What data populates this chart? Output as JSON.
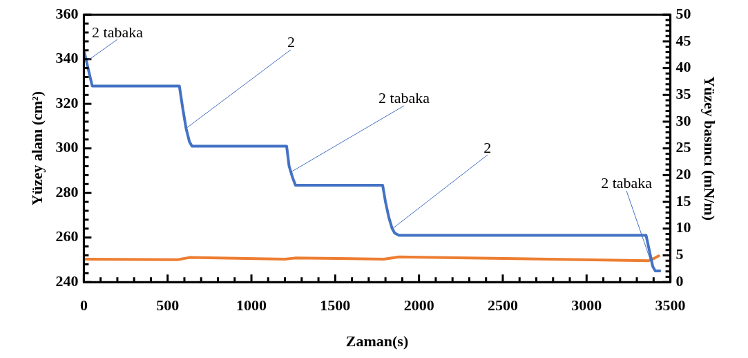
{
  "chart_data": {
    "type": "line",
    "xlabel": "Zaman(s)",
    "ylabel": "Yüzey alanı (cm²)",
    "y2label": "Yüzey basıncı (mN/m)",
    "xlim": [
      0,
      3500
    ],
    "ylim": [
      240,
      360
    ],
    "y2lim": [
      0,
      50
    ],
    "xticks": [
      0,
      {
        "value": 100,
        "label": null
      },
      {
        "value": 200,
        "label": null
      },
      {
        "value": 300,
        "label": null
      },
      {
        "value": 400,
        "label": null
      },
      500,
      {
        "value": 600,
        "label": null
      },
      {
        "value": 700,
        "label": null
      },
      {
        "value": 800,
        "label": null
      },
      {
        "value": 900,
        "label": null
      },
      1000,
      {
        "value": 1100,
        "label": null
      },
      {
        "value": 1200,
        "label": null
      },
      {
        "value": 1300,
        "label": null
      },
      {
        "value": 1400,
        "label": null
      },
      1500,
      {
        "value": 1600,
        "label": null
      },
      {
        "value": 1700,
        "label": null
      },
      {
        "value": 1800,
        "label": null
      },
      {
        "value": 1900,
        "label": null
      },
      2000,
      {
        "value": 2100,
        "label": null
      },
      {
        "value": 2200,
        "label": null
      },
      {
        "value": 2300,
        "label": null
      },
      {
        "value": 2400,
        "label": null
      },
      2500,
      {
        "value": 2600,
        "label": null
      },
      {
        "value": 2700,
        "label": null
      },
      {
        "value": 2800,
        "label": null
      },
      {
        "value": 2900,
        "label": null
      },
      3000,
      {
        "value": 3100,
        "label": null
      },
      {
        "value": 3200,
        "label": null
      },
      {
        "value": 3300,
        "label": null
      },
      {
        "value": 3400,
        "label": null
      },
      3500
    ],
    "yticks": [
      240,
      {
        "value": 244,
        "label": null
      },
      {
        "value": 248,
        "label": null
      },
      {
        "value": 252,
        "label": null
      },
      {
        "value": 256,
        "label": null
      },
      260,
      {
        "value": 264,
        "label": null
      },
      {
        "value": 268,
        "label": null
      },
      {
        "value": 272,
        "label": null
      },
      {
        "value": 276,
        "label": null
      },
      280,
      {
        "value": 284,
        "label": null
      },
      {
        "value": 288,
        "label": null
      },
      {
        "value": 292,
        "label": null
      },
      {
        "value": 296,
        "label": null
      },
      300,
      {
        "value": 304,
        "label": null
      },
      {
        "value": 308,
        "label": null
      },
      {
        "value": 312,
        "label": null
      },
      {
        "value": 316,
        "label": null
      },
      320,
      {
        "value": 324,
        "label": null
      },
      {
        "value": 328,
        "label": null
      },
      {
        "value": 332,
        "label": null
      },
      {
        "value": 336,
        "label": null
      },
      340,
      {
        "value": 344,
        "label": null
      },
      {
        "value": 348,
        "label": null
      },
      {
        "value": 352,
        "label": null
      },
      {
        "value": 356,
        "label": null
      },
      360
    ],
    "y2ticks": [
      0,
      {
        "value": 1,
        "label": null
      },
      {
        "value": 2,
        "label": null
      },
      {
        "value": 3,
        "label": null
      },
      {
        "value": 4,
        "label": null
      },
      5,
      {
        "value": 6,
        "label": null
      },
      {
        "value": 7,
        "label": null
      },
      {
        "value": 8,
        "label": null
      },
      {
        "value": 9,
        "label": null
      },
      10,
      {
        "value": 11,
        "label": null
      },
      {
        "value": 12,
        "label": null
      },
      {
        "value": 13,
        "label": null
      },
      {
        "value": 14,
        "label": null
      },
      15,
      {
        "value": 16,
        "label": null
      },
      {
        "value": 17,
        "label": null
      },
      {
        "value": 18,
        "label": null
      },
      {
        "value": 19,
        "label": null
      },
      20,
      {
        "value": 21,
        "label": null
      },
      {
        "value": 22,
        "label": null
      },
      {
        "value": 23,
        "label": null
      },
      {
        "value": 24,
        "label": null
      },
      25,
      {
        "value": 26,
        "label": null
      },
      {
        "value": 27,
        "label": null
      },
      {
        "value": 28,
        "label": null
      },
      {
        "value": 29,
        "label": null
      },
      30,
      {
        "value": 31,
        "label": null
      },
      {
        "value": 32,
        "label": null
      },
      {
        "value": 33,
        "label": null
      },
      {
        "value": 34,
        "label": null
      },
      35,
      {
        "value": 36,
        "label": null
      },
      {
        "value": 37,
        "label": null
      },
      {
        "value": 38,
        "label": null
      },
      {
        "value": 39,
        "label": null
      },
      40,
      {
        "value": 41,
        "label": null
      },
      {
        "value": 42,
        "label": null
      },
      {
        "value": 43,
        "label": null
      },
      {
        "value": 44,
        "label": null
      },
      45,
      {
        "value": 46,
        "label": null
      },
      {
        "value": 47,
        "label": null
      },
      {
        "value": 48,
        "label": null
      },
      {
        "value": 49,
        "label": null
      },
      50
    ],
    "series": [
      {
        "color": "#4472c4",
        "x": [
          0,
          50,
          570,
          590,
          610,
          630,
          645,
          1210,
          1225,
          1245,
          1263,
          1783,
          1800,
          1820,
          1840,
          1855,
          1880,
          3355,
          3375,
          3395,
          3410,
          3437
        ],
        "values": [
          344,
          328,
          328,
          318,
          309,
          303,
          301,
          301,
          292,
          287,
          283.5,
          283.5,
          276,
          269,
          264,
          262,
          261,
          261,
          254,
          247,
          245,
          245
        ]
      },
      {
        "color": "#ed7d31",
        "axis": "y2",
        "x": [
          0,
          560,
          630,
          1200,
          1260,
          1790,
          1880,
          3370,
          3400,
          3430
        ],
        "values": [
          4.3,
          4.2,
          4.6,
          4.3,
          4.5,
          4.3,
          4.7,
          4.0,
          4.4,
          4.9
        ]
      }
    ],
    "annotations": [
      {
        "text": "2 tabaka",
        "x": 15,
        "y": 339
      },
      {
        "text": "2",
        "x": 610,
        "y": 309
      },
      {
        "text": "2 tabaka",
        "x": 1235,
        "y": 289.5
      },
      {
        "text": "2",
        "x": 1840,
        "y": 264
      },
      {
        "text": "2 tabaka",
        "x": 3395,
        "y": 247
      }
    ],
    "grid": false,
    "legend": false,
    "marker": "none",
    "line_style": "solid"
  }
}
